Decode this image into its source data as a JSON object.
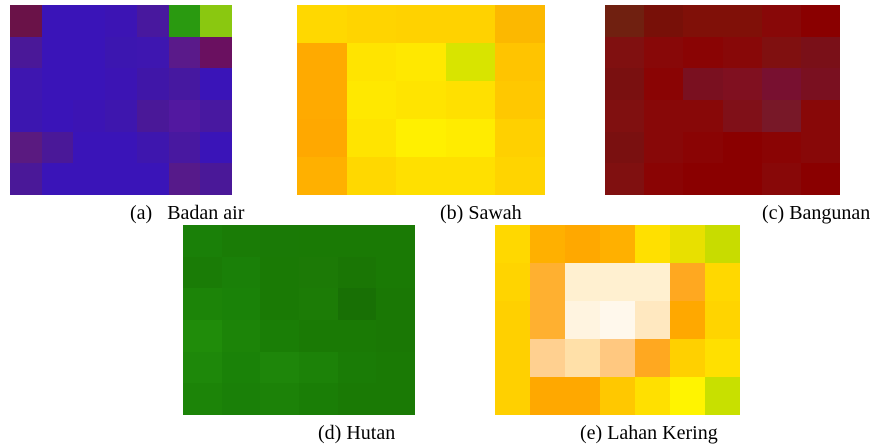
{
  "figure": {
    "panels": [
      {
        "caption": "(a)   Badan air"
      },
      {
        "caption": "(b) Sawah"
      },
      {
        "caption": "(c) Bangunan"
      },
      {
        "caption": "(d) Hutan"
      },
      {
        "caption": "(e) Lahan Kering"
      }
    ]
  }
}
